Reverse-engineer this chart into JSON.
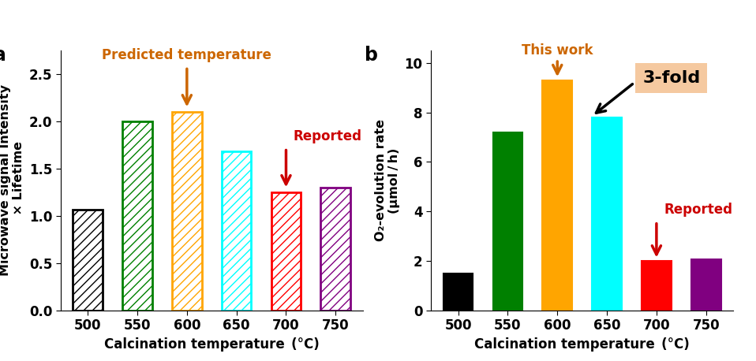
{
  "panel_a": {
    "categories": [
      "500",
      "550",
      "600",
      "650",
      "700",
      "750"
    ],
    "values": [
      1.07,
      2.0,
      2.1,
      1.68,
      1.25,
      1.3
    ],
    "colors": [
      "black",
      "green",
      "orange",
      "cyan",
      "red",
      "purple"
    ],
    "ylim": [
      0,
      2.75
    ],
    "yticks": [
      0.0,
      0.5,
      1.0,
      1.5,
      2.0,
      2.5
    ],
    "panel_label": "a"
  },
  "panel_b": {
    "categories": [
      "500",
      "550",
      "600",
      "650",
      "700",
      "750"
    ],
    "values": [
      1.5,
      7.2,
      9.3,
      7.8,
      2.0,
      2.05
    ],
    "colors": [
      "black",
      "green",
      "orange",
      "cyan",
      "red",
      "purple"
    ],
    "ylim": [
      0,
      10.5
    ],
    "yticks": [
      0,
      2,
      4,
      6,
      8,
      10
    ],
    "panel_label": "b"
  },
  "hatch": "///",
  "bar_width": 0.6,
  "predicted_temp_color": "#cc6600",
  "reported_color": "#cc0000",
  "this_work_color": "#cc6600",
  "threefold_bg": "#f5c9a0"
}
